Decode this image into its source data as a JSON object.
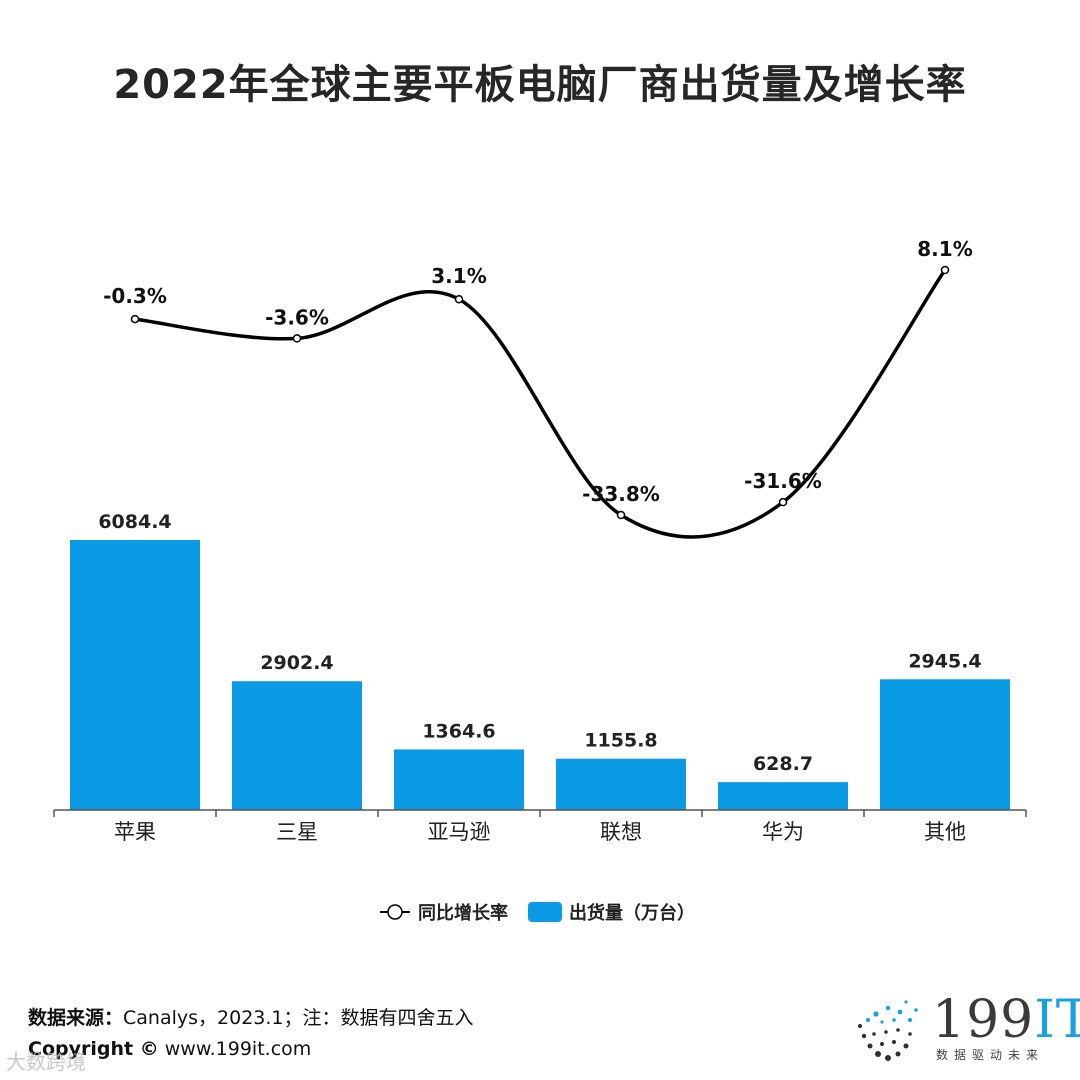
{
  "title": "2022年全球主要平板电脑厂商出货量及增长率",
  "chart_data": {
    "type": "bar+line",
    "categories": [
      "苹果",
      "三星",
      "亚马逊",
      "联想",
      "华为",
      "其他"
    ],
    "series": [
      {
        "name": "出货量（万台）",
        "type": "bar",
        "values": [
          6084.4,
          2902.4,
          1364.6,
          1155.8,
          628.7,
          2945.4
        ],
        "labels": [
          "6084.4",
          "2902.4",
          "1364.6",
          "1155.8",
          "628.7",
          "2945.4"
        ]
      },
      {
        "name": "同比增长率",
        "type": "line",
        "values": [
          -0.3,
          -3.6,
          3.1,
          -33.8,
          -31.6,
          8.1
        ],
        "labels": [
          "-0.3%",
          "-3.6%",
          "3.1%",
          "-33.8%",
          "-31.6%",
          "8.1%"
        ]
      }
    ],
    "bar_ylim": [
      0,
      8000
    ],
    "line_ylim": [
      -50,
      20
    ],
    "legend_position": "bottom-center",
    "grid": false,
    "bar_color": "#0a9be4",
    "line_color": "#000000"
  },
  "footer": {
    "source_label": "数据来源：",
    "source_text": "Canalys，2023.1；注：数据有四舍五入",
    "copyright_label": "Copyright ©",
    "copyright_text": " www.199it.com"
  },
  "watermark": "大数跨境",
  "logo": {
    "main": "199",
    "accent": "IT",
    "sub": "数据驱动未来"
  }
}
